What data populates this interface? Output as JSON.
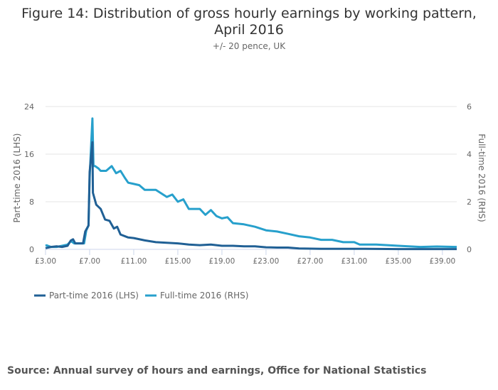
{
  "chart_data": {
    "type": "line",
    "title": "Figure 14: Distribution of gross hourly earnings by working pattern, April 2016",
    "subtitle": "+/- 20 pence, UK",
    "ylabel": "Part-time 2016 (LHS)",
    "y2label": "Full-time 2016 (RHS)",
    "xlim": [
      3,
      40.3
    ],
    "ylim": [
      0,
      24
    ],
    "y2lim": [
      0,
      6
    ],
    "xticks": [
      3,
      7,
      11,
      15,
      19,
      23,
      27,
      31,
      35,
      39
    ],
    "xtick_labels": [
      "£3.00",
      "£7.00",
      "£11.00",
      "£15.00",
      "£19.00",
      "£23.00",
      "£27.00",
      "£31.00",
      "£35.00",
      "£39.00"
    ],
    "yticks": [
      "0",
      "8",
      "16",
      "24"
    ],
    "y2ticks": [
      "0",
      "2",
      "4",
      "6"
    ],
    "grid": true,
    "legend_placement": "bottom-left",
    "series": [
      {
        "name": "Part-time 2016 (LHS)",
        "axis": "left",
        "color": "#206095",
        "x": [
          3.0,
          3.5,
          4.0,
          4.5,
          5.0,
          5.3,
          5.5,
          5.7,
          6.0,
          6.4,
          6.6,
          6.9,
          7.0,
          7.2,
          7.25,
          7.3,
          7.6,
          8.0,
          8.4,
          8.8,
          9.2,
          9.5,
          9.8,
          10.5,
          11,
          12,
          13,
          14,
          15,
          16,
          17,
          18,
          19,
          20,
          21,
          22,
          23,
          24,
          25,
          26,
          28,
          30,
          32,
          35,
          40.3
        ],
        "y": [
          0.2,
          0.4,
          0.5,
          0.4,
          0.6,
          1.5,
          1.7,
          1.0,
          1.0,
          1.0,
          3.0,
          4.0,
          13,
          17,
          18,
          9.5,
          7.5,
          6.8,
          5.0,
          4.8,
          3.5,
          3.8,
          2.5,
          2.0,
          1.9,
          1.5,
          1.2,
          1.1,
          1.0,
          0.8,
          0.7,
          0.8,
          0.6,
          0.6,
          0.5,
          0.5,
          0.35,
          0.3,
          0.3,
          0.15,
          0.1,
          0.1,
          0.1,
          0.05,
          0.05
        ]
      },
      {
        "name": "Full-time 2016 (RHS)",
        "axis": "right",
        "color": "#27a0cc",
        "x": [
          3.0,
          3.1,
          3.5,
          4.0,
          5.0,
          5.3,
          5.6,
          6.0,
          6.5,
          6.7,
          6.9,
          7.0,
          7.15,
          7.25,
          7.35,
          7.5,
          7.8,
          8.0,
          8.5,
          9.0,
          9.4,
          9.8,
          10.2,
          10.5,
          11,
          11.5,
          12,
          12.5,
          13,
          14,
          14.5,
          15,
          15.5,
          16,
          17,
          17.5,
          18,
          18.5,
          19,
          19.5,
          20,
          21,
          22,
          23,
          24,
          25,
          26,
          27,
          28,
          29,
          30,
          31,
          31.5,
          33,
          35,
          37,
          38.5,
          40.3
        ],
        "y": [
          0.15,
          0.17,
          0.1,
          0.1,
          0.2,
          0.35,
          0.25,
          0.25,
          0.25,
          0.8,
          1.0,
          3.0,
          4.5,
          5.5,
          3.5,
          3.5,
          3.4,
          3.3,
          3.3,
          3.5,
          3.2,
          3.3,
          3.0,
          2.8,
          2.75,
          2.7,
          2.5,
          2.5,
          2.5,
          2.2,
          2.3,
          2.0,
          2.1,
          1.7,
          1.7,
          1.45,
          1.65,
          1.4,
          1.3,
          1.35,
          1.1,
          1.05,
          0.95,
          0.8,
          0.75,
          0.65,
          0.55,
          0.5,
          0.4,
          0.4,
          0.3,
          0.3,
          0.2,
          0.2,
          0.15,
          0.1,
          0.12,
          0.1
        ]
      }
    ]
  },
  "source": "Source: Annual survey of hours and earnings, Office for National Statistics"
}
